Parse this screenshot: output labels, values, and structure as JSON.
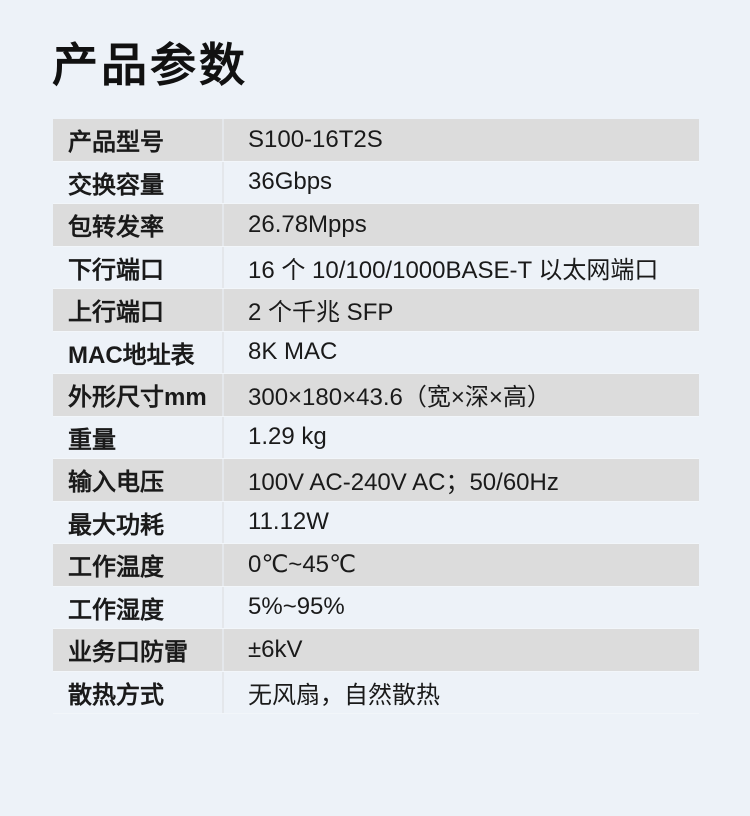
{
  "page": {
    "title": "产品参数"
  },
  "theme": {
    "background_color": "#edf2f8",
    "stripe_color": "#dcdcdc",
    "divider_color": "#e4e7eb",
    "text_color": "#1a1a1a"
  },
  "table": {
    "rows": [
      {
        "label": "产品型号",
        "value": "S100-16T2S"
      },
      {
        "label": "交换容量",
        "value": "36Gbps"
      },
      {
        "label": "包转发率",
        "value": "26.78Mpps"
      },
      {
        "label": "下行端口",
        "value": "16 个 10/100/1000BASE-T 以太网端口"
      },
      {
        "label": "上行端口",
        "value": "2 个千兆 SFP"
      },
      {
        "label": "MAC地址表",
        "value": "8K MAC"
      },
      {
        "label": "外形尺寸mm",
        "value": "300×180×43.6（宽×深×高）"
      },
      {
        "label": "重量",
        "value": "1.29 kg"
      },
      {
        "label": "输入电压",
        "value": "100V AC-240V AC；50/60Hz"
      },
      {
        "label": "最大功耗",
        "value": "11.12W"
      },
      {
        "label": "工作温度",
        "value": "0℃~45℃"
      },
      {
        "label": "工作湿度",
        "value": "5%~95%"
      },
      {
        "label": "业务口防雷",
        "value": "±6kV"
      },
      {
        "label": "散热方式",
        "value": "无风扇，自然散热"
      }
    ]
  }
}
